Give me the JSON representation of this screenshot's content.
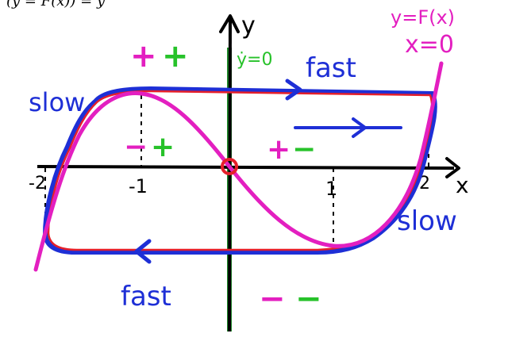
{
  "top_caption": "(y = F(x)) = y",
  "axes": {
    "y_label": "y",
    "x_label": "x",
    "ticks": [
      {
        "value": -2,
        "label": "-2"
      },
      {
        "value": -1,
        "label": "-1"
      },
      {
        "value": 1,
        "label": "1"
      },
      {
        "value": 2,
        "label": "2"
      }
    ]
  },
  "curve_label": {
    "line1": "y=F(x)",
    "line2": "x=0"
  },
  "nullcline_label": "ẏ=0",
  "labels": {
    "fast_top": "fast",
    "fast_bottom": "fast",
    "slow_left": "slow",
    "slow_right": "slow"
  },
  "sign_labels": {
    "top_left": {
      "first": "+",
      "second": "+"
    },
    "mid_left": {
      "first": "−",
      "second": "+"
    },
    "mid_right": {
      "first": "+",
      "second": "−"
    },
    "bottom_right": {
      "first": "−",
      "second": "−"
    }
  },
  "colors": {
    "axis": "#000000",
    "cycle": "#1e2fd6",
    "cycle_inner": "#e51f2a",
    "curve": "#e31fc0",
    "nullcline": "#1f8a2a",
    "sign_first": "#e31fc0",
    "sign_second": "#27c22a",
    "equilibrium": "#e51f2a"
  }
}
